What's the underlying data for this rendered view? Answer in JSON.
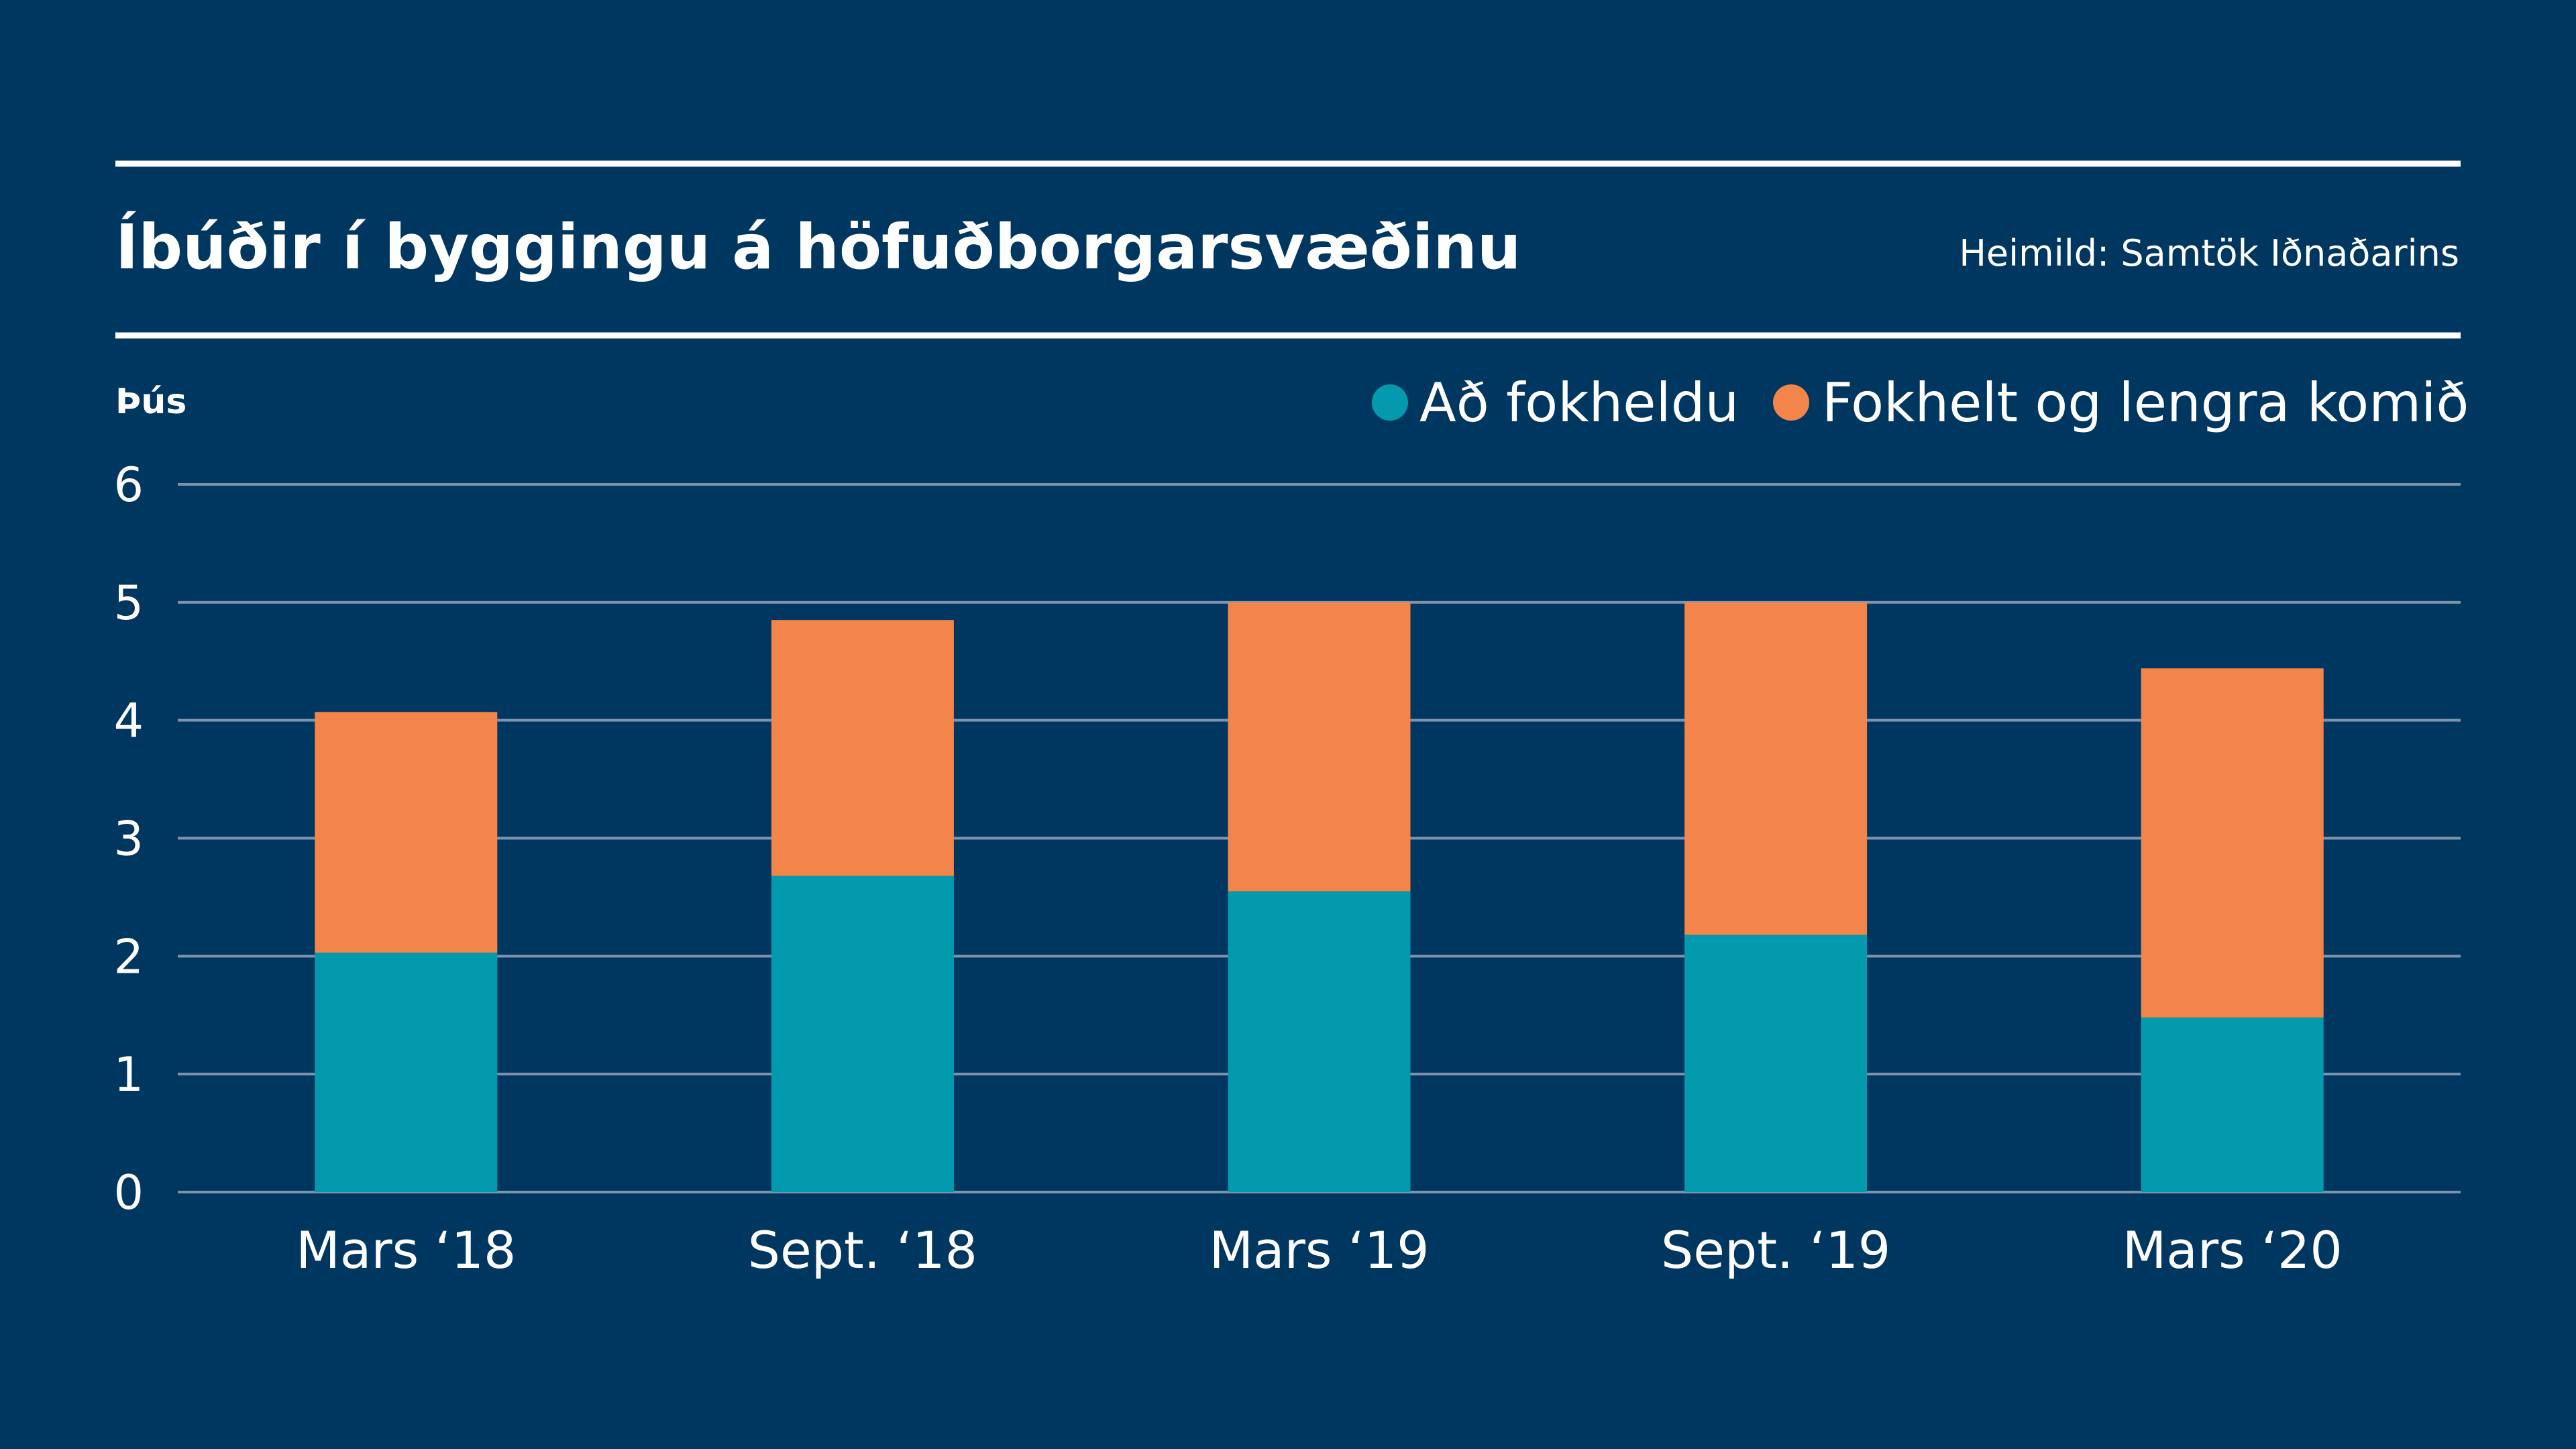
{
  "chart_data": {
    "type": "bar",
    "stacked": true,
    "title": "Íbúðir í byggingu á höfuðborgarsvæðinu",
    "source": "Heimild: Samtök Iðnaðarins",
    "ylabel": "Þús",
    "xlabel": "",
    "categories": [
      "Mars ‘18",
      "Sept. ‘18",
      "Mars ‘19",
      "Sept. ‘19",
      "Mars ‘20"
    ],
    "series": [
      {
        "name": "Að fokheldu",
        "values": [
          2.03,
          2.68,
          2.55,
          2.18,
          1.48
        ],
        "color": "#049AAE"
      },
      {
        "name": "Fokhelt og lengra komið",
        "values": [
          2.04,
          2.17,
          2.45,
          2.82,
          2.96
        ],
        "color": "#F4854A"
      }
    ],
    "ylim": [
      0,
      6
    ],
    "yticks": [
      "0",
      "1",
      "2",
      "3",
      "4",
      "5",
      "6"
    ],
    "grid": true,
    "legend_position": "top-right",
    "colors": {
      "background": "#003761",
      "text": "#FFFFFF",
      "gridline": "#8093AC"
    }
  }
}
